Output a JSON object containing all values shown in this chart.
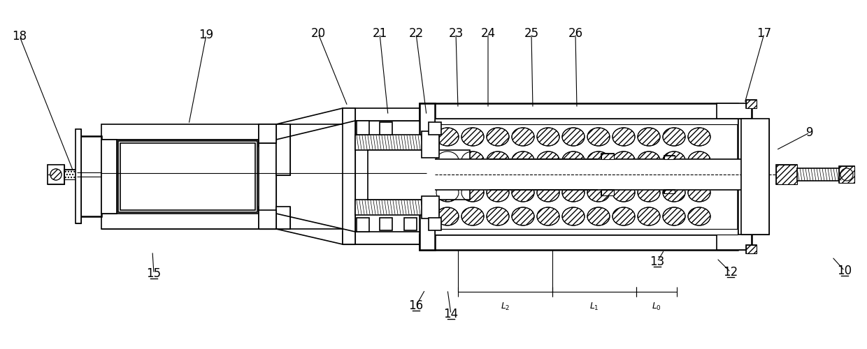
{
  "bg_color": "#ffffff",
  "fig_width": 12.4,
  "fig_height": 5.0,
  "dpi": 100
}
